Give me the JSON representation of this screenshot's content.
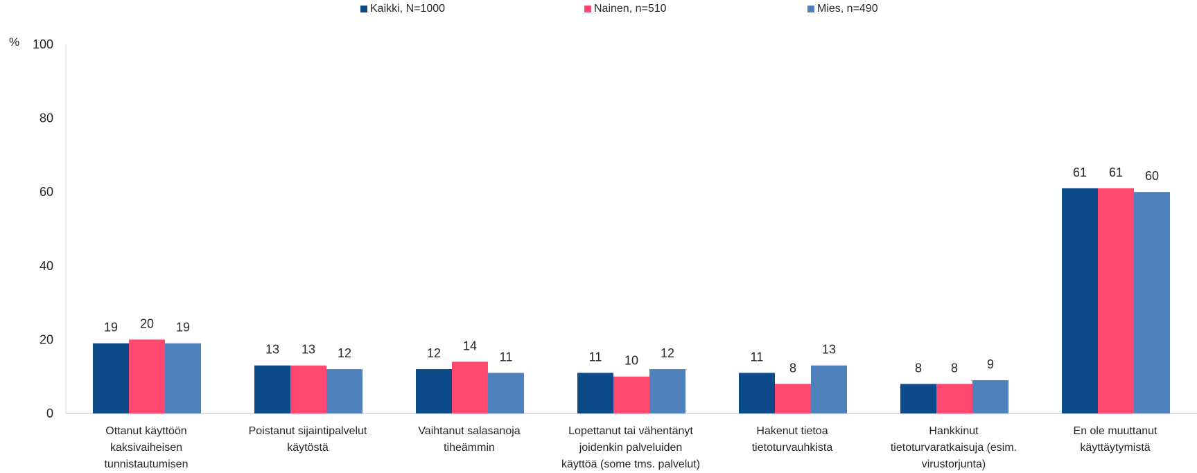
{
  "chart_data": {
    "type": "bar",
    "ylabel": "%",
    "ylim": [
      0,
      100
    ],
    "yticks": [
      "0",
      "20",
      "40",
      "60",
      "80",
      "100"
    ],
    "grid": false,
    "legend_position": "top",
    "categories": [
      "Ottanut käyttöön\nkaksivaiheisen\ntunnistautumisen",
      "Poistanut sijaintipalvelut\nkäytöstä",
      "Vaihtanut salasanoja\ntiheämmin",
      "Lopettanut tai vähentänyt\njoidenkin palveluiden\nkäyttöä (some tms. palvelut)",
      "Hakenut tietoa\ntietoturvauhkista",
      "Hankkinut\ntietoturvaratkaisuja (esim.\nvirustorjunta)",
      "En ole muuttanut\nkäyttäytymistä"
    ],
    "series": [
      {
        "name": "Kaikki, N=1000",
        "color": "#0D4A8A",
        "values": [
          19,
          13,
          12,
          11,
          11,
          8,
          61
        ]
      },
      {
        "name": "Nainen, n=510",
        "color": "#FF4870",
        "values": [
          20,
          13,
          14,
          10,
          8,
          8,
          61
        ]
      },
      {
        "name": "Mies, n=490",
        "color": "#4F81BD",
        "values": [
          19,
          12,
          11,
          12,
          13,
          9,
          60
        ]
      }
    ]
  }
}
